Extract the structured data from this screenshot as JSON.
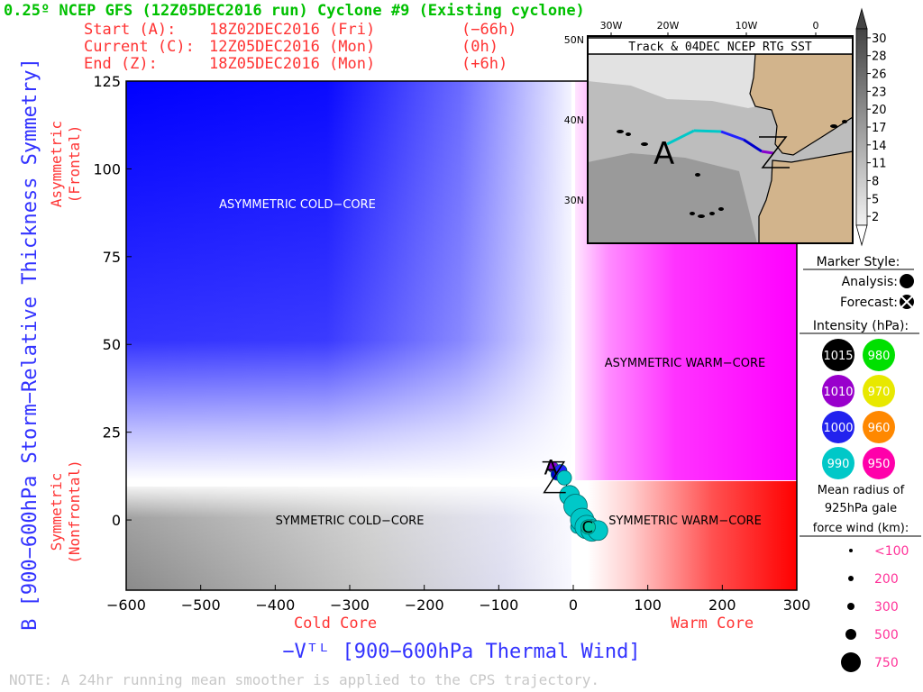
{
  "header": {
    "title": "0.25º NCEP GFS (12Z05DEC2016 run) Cyclone #9 (Existing cyclone)",
    "start_label": "Start (A):",
    "start_value": "18Z02DEC2016 (Fri)",
    "start_offset": "(−66h)",
    "current_label": "Current (C):",
    "current_value": "12Z05DEC2016 (Mon)",
    "current_offset": "(0h)",
    "end_label": "End (Z):",
    "end_value": "18Z05DEC2016 (Mon)",
    "end_offset": "(+6h)"
  },
  "note": "NOTE:  A 24hr running mean smoother is applied to the CPS trajectory.",
  "colors": {
    "title_green": "#00c000",
    "header_red": "#ff3333",
    "axis_blue": "#3333ff",
    "cold_blue": "#0000ff",
    "warm_magenta": "#ff00ff",
    "warm_red": "#ff0000",
    "land": "#d2b48c"
  },
  "chart_data": [
    {
      "type": "scatter",
      "title": "",
      "xlabel": "−Vᵀᴸ [900−600hPa Thermal Wind]",
      "ylabel": "B [900−600hPa Storm−Relative Thickness Symmetry]",
      "x_side_labels": {
        "left": "Cold Core",
        "right": "Warm Core"
      },
      "y_side_labels": {
        "top_line1": "Asymmetric",
        "top_line2": "(Frontal)",
        "bottom_line1": "Symmetric",
        "bottom_line2": "(Nonfrontal)"
      },
      "xlim": [
        -600,
        300
      ],
      "ylim": [
        -20,
        125
      ],
      "xticks": [
        -600,
        -500,
        -400,
        -300,
        -200,
        -100,
        0,
        100,
        200,
        300
      ],
      "yticks": [
        0,
        25,
        50,
        75,
        100,
        125
      ],
      "quadrant_labels": {
        "asym_cold": "ASYMMETRIC COLD−CORE",
        "asym_warm": "ASYMMETRIC WARM−CORE",
        "sym_cold": "SYMMETRIC COLD−CORE",
        "sym_warm": "SYMMETRIC WARM−CORE"
      },
      "trajectory": [
        {
          "x": -27,
          "y": 15,
          "color": "#8800cc",
          "size": 12
        },
        {
          "x": -22,
          "y": 13,
          "color": "#0000cc",
          "size": 13
        },
        {
          "x": -17,
          "y": 14,
          "color": "#2222ff",
          "size": 14
        },
        {
          "x": -12,
          "y": 12,
          "color": "#00c8c8",
          "size": 16
        },
        {
          "x": -5,
          "y": 7,
          "color": "#00c8c8",
          "size": 22
        },
        {
          "x": 3,
          "y": 4,
          "color": "#00c8c8",
          "size": 26
        },
        {
          "x": 5,
          "y": -2,
          "color": "#00c8c8",
          "size": 14
        },
        {
          "x": 12,
          "y": 0,
          "color": "#00c8c8",
          "size": 26
        },
        {
          "x": 18,
          "y": -2,
          "color": "#00c8c8",
          "size": 26
        },
        {
          "x": 25,
          "y": -3,
          "color": "#00c8c8",
          "size": 24
        },
        {
          "x": 33,
          "y": -3,
          "color": "#00c8c8",
          "size": 22
        },
        {
          "x": 20,
          "y": -2,
          "color": "#00c8a8",
          "size": 16
        }
      ],
      "markers": {
        "start": "A",
        "current": "C",
        "end": "Z"
      }
    },
    {
      "type": "map",
      "title": "Track & 04DEC NCEP RTG SST",
      "lon_ticks": [
        "30W",
        "20W",
        "10W",
        "0"
      ],
      "lat_ticks": [
        "50N",
        "40N",
        "30N"
      ],
      "colorbar_ticks": [
        "30",
        "28",
        "26",
        "23",
        "20",
        "17",
        "14",
        "11",
        "8",
        "5",
        "2"
      ],
      "track_colors": [
        "#00c8c8",
        "#00c8c8",
        "#2222ff",
        "#0000cc",
        "#8800cc"
      ]
    }
  ],
  "legend": {
    "marker_style": "Marker Style:",
    "analysis": "Analysis:",
    "forecast": "Forecast:",
    "intensity": "Intensity (hPa):",
    "intensity_items": [
      {
        "label": "1015",
        "color": "#000000",
        "text_color": "#ffffff"
      },
      {
        "label": "980",
        "color": "#00e000",
        "text_color": "#ffffff"
      },
      {
        "label": "1010",
        "color": "#9900cc",
        "text_color": "#ffffff"
      },
      {
        "label": "970",
        "color": "#e8e800",
        "text_color": "#ffffff"
      },
      {
        "label": "1000",
        "color": "#2222ee",
        "text_color": "#ffffff"
      },
      {
        "label": "960",
        "color": "#ff8800",
        "text_color": "#ffffff"
      },
      {
        "label": "990",
        "color": "#00c8c8",
        "text_color": "#ffffff"
      },
      {
        "label": "950",
        "color": "#ff00aa",
        "text_color": "#ffffff"
      }
    ],
    "radius_title_1": "Mean radius of",
    "radius_title_2": "925hPa gale",
    "radius_title_3": "force wind (km):",
    "radius_items": [
      {
        "label": "<100",
        "size": 4
      },
      {
        "label": "200",
        "size": 6
      },
      {
        "label": "300",
        "size": 8
      },
      {
        "label": "500",
        "size": 12
      },
      {
        "label": "750",
        "size": 18
      }
    ]
  }
}
